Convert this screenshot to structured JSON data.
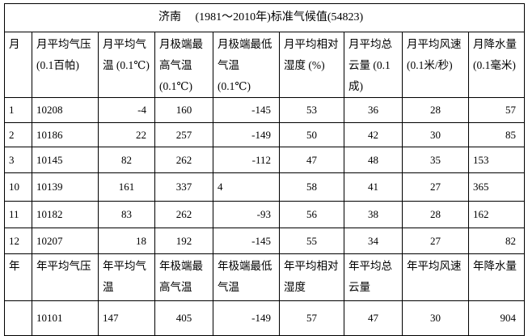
{
  "title": "济南　 (1981～2010年)标准气候值(54823)",
  "monthly_headers": [
    "月",
    "月平均气压(0.1百帕)",
    "月平均气温 (0.1℃)",
    "月极端最高气温 (0.1℃)",
    "月极端最低气温 (0.1℃)",
    "月平均相对湿度 (%)",
    "月平均总云量 (0.1成)",
    "月平均风速(0.1米/秒)",
    "月降水量(0.1毫米)"
  ],
  "monthly_rows": [
    [
      "1",
      "10208",
      "-4",
      "160",
      "-145",
      "53",
      "36",
      "28",
      "57"
    ],
    [
      "2",
      "10186",
      "22",
      "257",
      "-149",
      "50",
      "42",
      "30",
      "85"
    ],
    [
      "3",
      "10145",
      "82",
      "262",
      "-112",
      "47",
      "48",
      "35",
      "153"
    ],
    [
      "10",
      "10139",
      "161",
      "337",
      "4",
      "58",
      "41",
      "27",
      "365"
    ],
    [
      "11",
      "10182",
      "83",
      "262",
      "-93",
      "56",
      "38",
      "28",
      "162"
    ],
    [
      "12",
      "10207",
      "18",
      "192",
      "-145",
      "55",
      "34",
      "27",
      "82"
    ]
  ],
  "annual_headers": [
    "年",
    "年平均气压",
    "年平均气温",
    "年极端最高气温",
    "年极端最低气温",
    "年平均相对湿度",
    "年平均总云量",
    "年平均风速",
    "年降水量"
  ],
  "annual_row": [
    "",
    "10101",
    "147",
    "405",
    "-149",
    "57",
    "47",
    "30",
    "904"
  ]
}
